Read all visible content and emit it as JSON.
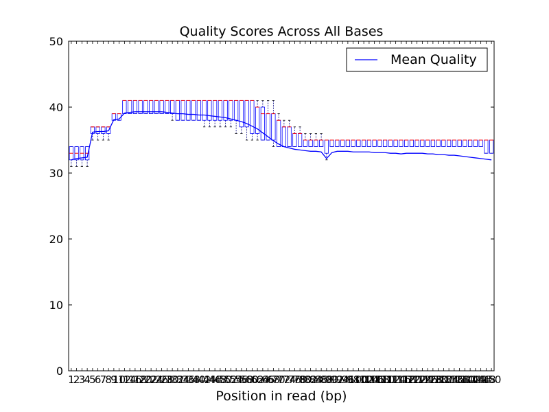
{
  "chart_data": {
    "type": "box",
    "title": "Quality Scores Across All Bases",
    "xlabel": "Position in read (bp)",
    "ylabel": "",
    "ylim": [
      0,
      50
    ],
    "yticks": [
      0,
      10,
      20,
      30,
      40,
      50
    ],
    "xticks_shown_sample": [
      "1",
      "2",
      "3",
      "4",
      "5",
      "6",
      "7",
      "8",
      "9",
      "10"
    ],
    "legend": {
      "position": "top-right",
      "entries": [
        {
          "name": "Mean Quality",
          "color": "#0000ff"
        }
      ]
    },
    "colors": {
      "box_edge": "#0000ff",
      "median": "#ff0000",
      "mean_line": "#0000ff",
      "whisker": "#000080"
    },
    "positions": [
      1,
      2,
      3,
      4,
      5,
      6,
      7,
      8,
      9,
      10,
      12,
      14,
      16,
      18,
      20,
      22,
      24,
      26,
      28,
      30,
      32,
      34,
      36,
      38,
      40,
      42,
      44,
      46,
      48,
      50,
      52,
      54,
      56,
      58,
      60,
      62,
      64,
      66,
      68,
      70,
      72,
      74,
      76,
      78,
      80,
      82,
      84,
      86,
      88,
      90,
      92,
      94,
      96,
      98,
      100,
      102,
      104,
      106,
      108,
      110,
      112,
      114,
      116,
      118,
      120,
      122,
      124,
      126,
      128,
      130,
      132,
      134,
      136,
      138,
      140,
      142,
      144,
      146,
      148,
      150
    ],
    "mean_quality": [
      32.0,
      32.2,
      32.3,
      32.4,
      36.2,
      36.3,
      36.3,
      36.4,
      38.1,
      38.2,
      39.1,
      39.2,
      39.3,
      39.3,
      39.3,
      39.3,
      39.3,
      39.3,
      39.2,
      39.1,
      39.0,
      39.0,
      38.9,
      38.9,
      38.8,
      38.8,
      38.7,
      38.6,
      38.5,
      38.4,
      38.2,
      38.0,
      37.8,
      37.5,
      37.1,
      36.7,
      36.1,
      35.5,
      34.9,
      34.4,
      34.0,
      33.8,
      33.6,
      33.5,
      33.4,
      33.3,
      33.3,
      33.2,
      32.2,
      33.1,
      33.3,
      33.3,
      33.3,
      33.2,
      33.2,
      33.2,
      33.2,
      33.1,
      33.1,
      33.1,
      33.0,
      33.0,
      32.9,
      33.0,
      33.0,
      33.0,
      33.0,
      32.9,
      32.9,
      32.8,
      32.8,
      32.7,
      32.7,
      32.6,
      32.5,
      32.4,
      32.3,
      32.2,
      32.1,
      32.0
    ],
    "median": [
      33,
      33,
      33,
      33,
      37,
      37,
      37,
      37,
      39,
      39,
      41,
      41,
      41,
      41,
      41,
      41,
      41,
      41,
      41,
      41,
      41,
      41,
      41,
      41,
      41,
      41,
      41,
      41,
      41,
      41,
      41,
      41,
      41,
      41,
      41,
      40,
      39,
      39,
      39,
      38,
      37,
      37,
      36,
      36,
      35,
      35,
      35,
      35,
      35,
      35,
      35,
      35,
      35,
      35,
      35,
      35,
      35,
      35,
      35,
      35,
      35,
      35,
      35,
      35,
      35,
      35,
      35,
      35,
      35,
      35,
      35,
      35,
      35,
      35,
      35,
      35,
      35,
      35,
      35,
      35
    ],
    "q1": [
      32,
      32,
      32,
      32,
      36,
      36,
      36,
      36,
      38,
      38,
      39,
      39,
      39,
      39,
      39,
      39,
      39,
      39,
      39,
      39,
      38,
      38,
      38,
      38,
      38,
      38,
      38,
      38,
      38,
      38,
      38,
      38,
      37,
      37,
      36,
      36,
      35,
      35,
      35,
      34,
      34,
      34,
      34,
      34,
      34,
      34,
      34,
      34,
      33,
      34,
      34,
      34,
      34,
      34,
      34,
      34,
      34,
      34,
      34,
      34,
      34,
      34,
      34,
      34,
      34,
      34,
      34,
      34,
      34,
      34,
      34,
      34,
      34,
      34,
      34,
      34,
      34,
      34,
      33,
      33
    ],
    "q3": [
      34,
      34,
      34,
      34,
      37,
      37,
      37,
      37,
      39,
      39,
      41,
      41,
      41,
      41,
      41,
      41,
      41,
      41,
      41,
      41,
      41,
      41,
      41,
      41,
      41,
      41,
      41,
      41,
      41,
      41,
      41,
      41,
      41,
      41,
      41,
      40,
      40,
      39,
      39,
      38,
      37,
      37,
      36,
      36,
      35,
      35,
      35,
      35,
      35,
      35,
      35,
      35,
      35,
      35,
      35,
      35,
      35,
      35,
      35,
      35,
      35,
      35,
      35,
      35,
      35,
      35,
      35,
      35,
      35,
      35,
      35,
      35,
      35,
      35,
      35,
      35,
      35,
      35,
      35,
      35
    ],
    "whisker_low": [
      31,
      31,
      31,
      31,
      35,
      35,
      35,
      35,
      38,
      38,
      39,
      39,
      39,
      39,
      39,
      39,
      39,
      39,
      39,
      38,
      38,
      38,
      38,
      38,
      38,
      37,
      37,
      37,
      37,
      37,
      37,
      36,
      36,
      35,
      35,
      35,
      35,
      35,
      34,
      34,
      34,
      34,
      34,
      34,
      34,
      34,
      34,
      34,
      32,
      34,
      34,
      34,
      34,
      34,
      34,
      34,
      34,
      34,
      34,
      34,
      34,
      34,
      34,
      34,
      34,
      34,
      34,
      34,
      34,
      34,
      34,
      34,
      34,
      34,
      34,
      34,
      34,
      34,
      33,
      33
    ],
    "whisker_high": [
      34,
      34,
      34,
      34,
      37,
      37,
      37,
      37,
      39,
      39,
      41,
      41,
      41,
      41,
      41,
      41,
      41,
      41,
      41,
      41,
      41,
      41,
      41,
      41,
      41,
      41,
      41,
      41,
      41,
      41,
      41,
      41,
      41,
      41,
      41,
      41,
      41,
      41,
      41,
      39,
      38,
      38,
      37,
      37,
      36,
      36,
      36,
      36,
      35,
      35,
      35,
      35,
      35,
      35,
      35,
      35,
      35,
      35,
      35,
      35,
      35,
      35,
      35,
      35,
      35,
      35,
      35,
      35,
      35,
      35,
      35,
      35,
      35,
      35,
      35,
      35,
      35,
      35,
      35,
      35
    ]
  }
}
